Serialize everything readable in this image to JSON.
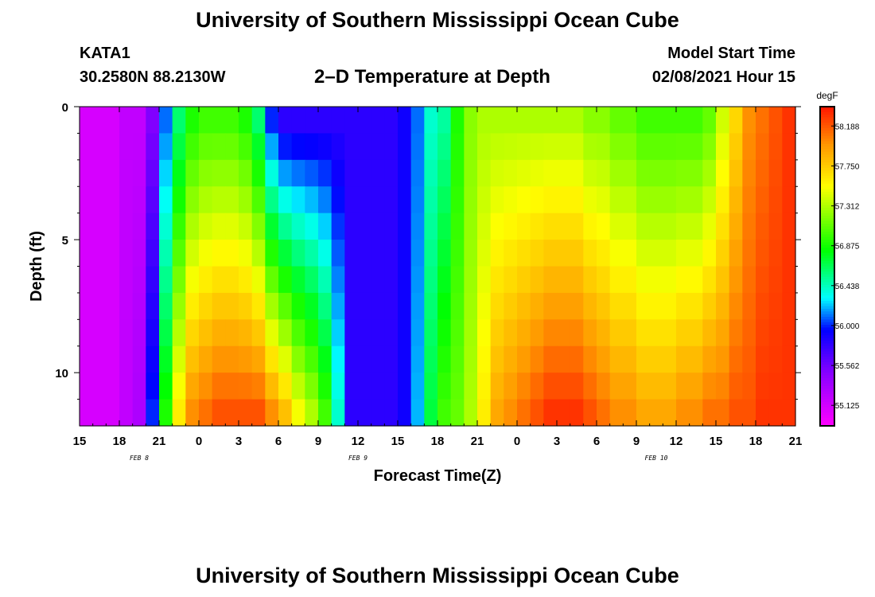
{
  "header": {
    "title": "University of Southern Mississippi Ocean Cube",
    "station": "KATA1",
    "coordinates": "30.2580N 88.2130W",
    "plot_title": "2–D Temperature at Depth",
    "model_start_label": "Model Start Time",
    "model_start_value": "02/08/2021 Hour 15"
  },
  "footer": {
    "title": "University of Southern Mississippi Ocean Cube"
  },
  "chart_data": {
    "type": "heatmap",
    "title": "2–D Temperature at Depth",
    "xlabel": "Forecast Time(Z)",
    "ylabel": "Depth (ft)",
    "x_tick_labels": [
      "15",
      "18",
      "21",
      "0",
      "3",
      "6",
      "9",
      "12",
      "15",
      "18",
      "21",
      "0",
      "3",
      "6",
      "9",
      "12",
      "15",
      "18",
      "21"
    ],
    "x_hours": [
      0,
      3,
      6,
      9,
      12,
      15,
      18,
      21,
      24,
      27,
      30,
      33,
      36,
      39,
      42,
      45,
      48,
      51,
      54
    ],
    "date_labels": [
      {
        "label": "FEB  8",
        "hour": 4.5
      },
      {
        "label": "FEB  9",
        "hour": 21
      },
      {
        "label": "FEB  10",
        "hour": 43.5
      }
    ],
    "xlim": [
      0,
      54
    ],
    "y_tick_labels": [
      "0",
      "5",
      "10"
    ],
    "y_ticks": [
      0,
      5,
      10
    ],
    "ylim": [
      0,
      12
    ],
    "y_inverted": true,
    "colorbar": {
      "unit": "degF",
      "min": 54.9,
      "max": 58.4,
      "tick_labels": [
        "58.188",
        "57.750",
        "57.312",
        "56.875",
        "56.438",
        "56.000",
        "55.562",
        "55.125"
      ],
      "tick_values": [
        58.188,
        57.75,
        57.312,
        56.875,
        56.438,
        56.0,
        55.562,
        55.125
      ]
    },
    "depth_levels_ft": [
      0.5,
      1.5,
      2.5,
      3.5,
      4.5,
      5.5,
      6.5,
      7.5,
      8.5,
      9.5,
      10.5,
      11.5
    ],
    "time_hours": [
      0,
      1,
      2,
      3,
      4,
      5,
      6,
      7,
      8,
      9,
      10,
      11,
      12,
      13,
      14,
      15,
      16,
      17,
      18,
      19,
      20,
      21,
      22,
      23,
      24,
      25,
      26,
      27,
      28,
      29,
      30,
      31,
      32,
      33,
      34,
      35,
      36,
      37,
      38,
      39,
      40,
      41,
      42,
      43,
      44,
      45,
      46,
      47,
      48,
      49,
      50,
      51,
      52,
      53
    ],
    "temperature_surface_degF": [
      55.1,
      55.1,
      55.1,
      55.2,
      55.2,
      55.5,
      56.1,
      56.6,
      56.9,
      57.0,
      57.0,
      57.0,
      56.9,
      56.6,
      56.0,
      55.8,
      55.8,
      55.8,
      55.8,
      55.8,
      55.8,
      55.8,
      55.8,
      55.8,
      55.9,
      56.1,
      56.4,
      56.5,
      56.9,
      57.2,
      57.3,
      57.3,
      57.3,
      57.3,
      57.3,
      57.3,
      57.3,
      57.3,
      57.2,
      57.2,
      57.1,
      57.1,
      57.0,
      57.0,
      57.0,
      57.0,
      57.0,
      57.1,
      57.4,
      57.7,
      58.0,
      58.1,
      58.2,
      58.3
    ],
    "temperature_bottom_degF": [
      55.1,
      55.1,
      55.1,
      55.2,
      55.3,
      56.0,
      56.9,
      57.6,
      58.0,
      58.1,
      58.2,
      58.2,
      58.2,
      58.2,
      58.0,
      57.8,
      57.5,
      57.3,
      57.0,
      56.4,
      55.8,
      55.8,
      55.8,
      55.8,
      55.9,
      56.2,
      56.7,
      57.0,
      57.1,
      57.3,
      57.6,
      57.9,
      58.0,
      58.1,
      58.2,
      58.3,
      58.3,
      58.3,
      58.2,
      58.1,
      58.0,
      58.0,
      57.9,
      57.9,
      57.9,
      58.0,
      58.0,
      58.1,
      58.1,
      58.2,
      58.2,
      58.3,
      58.3,
      58.3
    ]
  }
}
